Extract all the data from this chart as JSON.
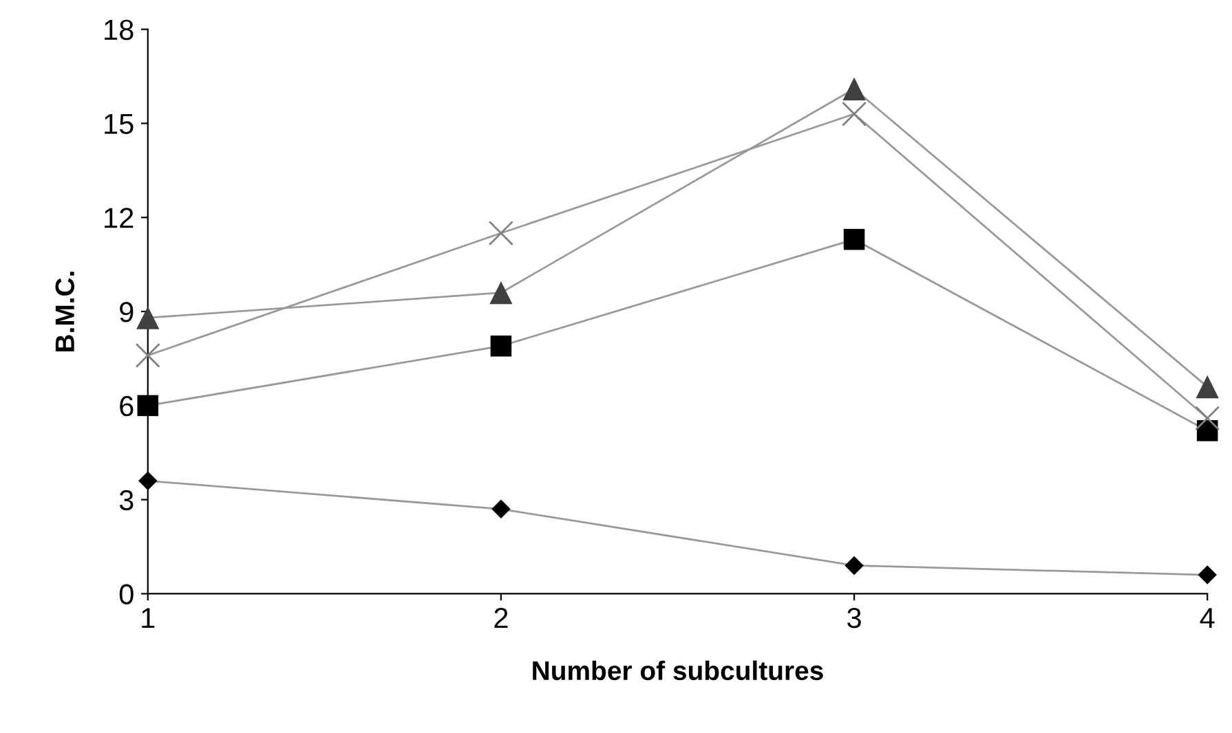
{
  "chart_data": {
    "type": "line",
    "xlabel": "Number of subcultures",
    "ylabel": "B.M.C.",
    "x": [
      1,
      2,
      3,
      4
    ],
    "xlim": [
      1,
      4
    ],
    "xticks": [
      1,
      2,
      3,
      4
    ],
    "ylim": [
      0,
      18
    ],
    "yticks": [
      0,
      3,
      6,
      9,
      12,
      15,
      18
    ],
    "grid": false,
    "legend": false,
    "series": [
      {
        "color": "#000000",
        "marker": "diamond",
        "values": [
          3.6,
          2.7,
          0.9,
          0.6
        ]
      },
      {
        "color": "#000000",
        "marker": "square",
        "values": [
          6.0,
          7.9,
          11.3,
          5.2
        ]
      },
      {
        "color": "#404040",
        "marker": "triangle",
        "values": [
          8.8,
          9.6,
          16.1,
          6.6
        ]
      },
      {
        "color": "#808080",
        "marker": "cross",
        "values": [
          7.6,
          11.5,
          15.3,
          5.6
        ]
      }
    ]
  }
}
